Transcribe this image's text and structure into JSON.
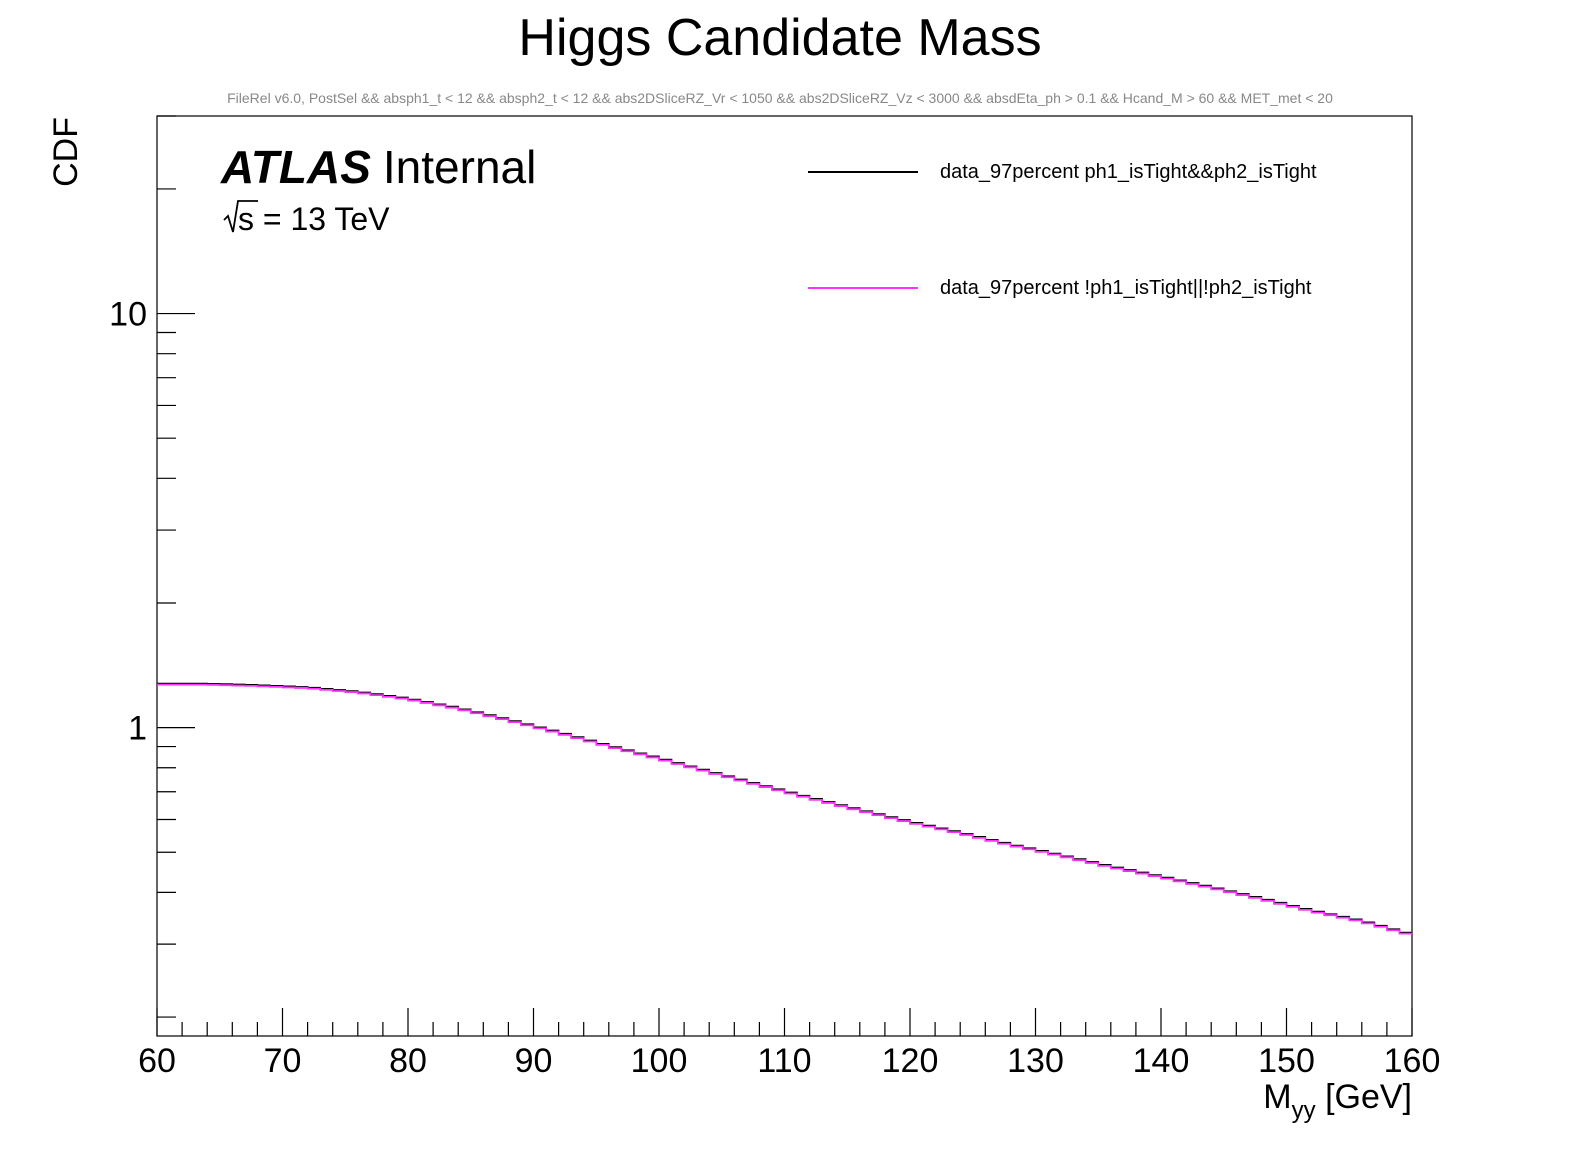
{
  "chart_data": {
    "type": "line",
    "title": "Higgs Candidate Mass",
    "subtitle": "FileRel v6.0, PostSel &&  absph1_t < 12 && absph2_t < 12 && abs2DSliceRZ_Vr < 1050 && abs2DSliceRZ_Vz < 3000 && absdEta_ph > 0.1 && Hcand_M > 60 && MET_met < 20",
    "xlabel_main": "M",
    "xlabel_sub": "yy",
    "xlabel_unit": " [GeV]",
    "ylabel": "CDF",
    "xlim": [
      60,
      160
    ],
    "ylim": [
      0.18,
      30
    ],
    "yscale": "log",
    "x_ticks": [
      "60",
      "70",
      "80",
      "90",
      "100",
      "110",
      "120",
      "130",
      "140",
      "150",
      "160"
    ],
    "y_ticks": [
      "1",
      "10"
    ],
    "atlas_label": "ATLAS",
    "atlas_status": "Internal",
    "energy_label": "s",
    "energy_value": " = 13 TeV",
    "legend_position": "top-right",
    "bin_width": 1,
    "x_start": 60,
    "y_anchors": [
      [
        60,
        1.27
      ],
      [
        64,
        1.27
      ],
      [
        68,
        1.26
      ],
      [
        72,
        1.245
      ],
      [
        76,
        1.215
      ],
      [
        80,
        1.17
      ],
      [
        84,
        1.11
      ],
      [
        88,
        1.04
      ],
      [
        92,
        0.97
      ],
      [
        96,
        0.9
      ],
      [
        100,
        0.84
      ],
      [
        104,
        0.78
      ],
      [
        108,
        0.725
      ],
      [
        112,
        0.675
      ],
      [
        116,
        0.63
      ],
      [
        120,
        0.59
      ],
      [
        124,
        0.555
      ],
      [
        128,
        0.52
      ],
      [
        132,
        0.49
      ],
      [
        136,
        0.46
      ],
      [
        140,
        0.435
      ],
      [
        144,
        0.41
      ],
      [
        148,
        0.385
      ],
      [
        152,
        0.36
      ],
      [
        156,
        0.34
      ],
      [
        160,
        0.315
      ]
    ],
    "series": [
      {
        "name": "data_97percent ph1_isTight&&ph2_isTight",
        "color": "#000000",
        "scale": 1.006
      },
      {
        "name": "data_97percent !ph1_isTight||!ph2_isTight",
        "color": "#ff33ff",
        "scale": 1.0
      }
    ]
  }
}
